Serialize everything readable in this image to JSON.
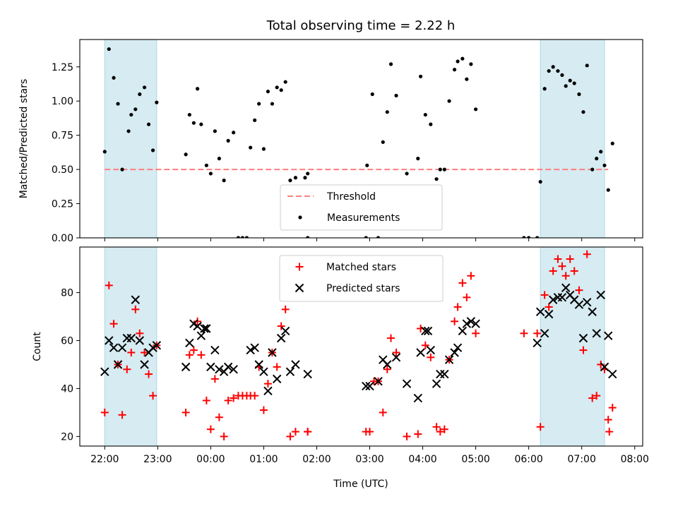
{
  "figure": {
    "title": "Total observing time = 2.22 h",
    "xlabel": "Time (UTC)"
  },
  "colors": {
    "shade": "#add8e6",
    "threshold": "#ff7f7f",
    "measurement": "#000000",
    "matched": "#ff0000",
    "predicted": "#000000"
  },
  "chart_data": [
    {
      "type": "scatter",
      "title": "Total observing time = 2.22 h",
      "xlabel": "",
      "ylabel": "Matched/Predicted stars",
      "x_unit": "hours after 22:00 UTC",
      "xlim": [
        -0.47,
        10.15
      ],
      "ylim": [
        0.0,
        1.45
      ],
      "yticks": [
        0.0,
        0.25,
        0.5,
        0.75,
        1.0,
        1.25
      ],
      "ytick_labels": [
        "0.00",
        "0.25",
        "0.50",
        "0.75",
        "1.00",
        "1.25"
      ],
      "shaded_intervals": [
        [
          0.0,
          0.98
        ],
        [
          8.22,
          9.43
        ]
      ],
      "threshold": {
        "label": "Threshold",
        "value": 0.5,
        "x": [
          0.0,
          9.5
        ]
      },
      "legend": {
        "position": "bottom-center",
        "entries": [
          "Threshold",
          "Measurements"
        ]
      },
      "series": [
        {
          "name": "Measurements",
          "points": [
            [
              0.0,
              0.63
            ],
            [
              0.08,
              1.38
            ],
            [
              0.17,
              1.17
            ],
            [
              0.25,
              0.98
            ],
            [
              0.33,
              0.5
            ],
            [
              0.45,
              0.78
            ],
            [
              0.5,
              0.9
            ],
            [
              0.58,
              0.94
            ],
            [
              0.66,
              1.05
            ],
            [
              0.75,
              1.1
            ],
            [
              0.83,
              0.83
            ],
            [
              0.91,
              0.64
            ],
            [
              0.98,
              0.99
            ],
            [
              1.53,
              0.61
            ],
            [
              1.6,
              0.9
            ],
            [
              1.68,
              0.84
            ],
            [
              1.75,
              1.09
            ],
            [
              1.82,
              0.83
            ],
            [
              1.92,
              0.53
            ],
            [
              2.0,
              0.47
            ],
            [
              2.08,
              0.78
            ],
            [
              2.16,
              0.58
            ],
            [
              2.25,
              0.42
            ],
            [
              2.33,
              0.71
            ],
            [
              2.43,
              0.77
            ],
            [
              2.52,
              0.0
            ],
            [
              2.6,
              0.0
            ],
            [
              2.68,
              0.0
            ],
            [
              2.75,
              0.66
            ],
            [
              2.83,
              0.86
            ],
            [
              2.91,
              0.98
            ],
            [
              3.0,
              0.65
            ],
            [
              3.08,
              1.07
            ],
            [
              3.16,
              0.98
            ],
            [
              3.25,
              1.1
            ],
            [
              3.33,
              1.08
            ],
            [
              3.41,
              1.14
            ],
            [
              3.5,
              0.42
            ],
            [
              3.6,
              0.44
            ],
            [
              3.78,
              0.44
            ],
            [
              3.83,
              0.47
            ],
            [
              3.83,
              0.0
            ],
            [
              4.93,
              0.0
            ],
            [
              4.95,
              0.53
            ],
            [
              5.05,
              1.05
            ],
            [
              5.16,
              0.0
            ],
            [
              5.25,
              0.7
            ],
            [
              5.33,
              0.92
            ],
            [
              5.4,
              1.27
            ],
            [
              5.5,
              1.04
            ],
            [
              5.7,
              0.47
            ],
            [
              5.91,
              0.58
            ],
            [
              5.96,
              1.18
            ],
            [
              6.05,
              0.9
            ],
            [
              6.15,
              0.83
            ],
            [
              6.26,
              0.43
            ],
            [
              6.33,
              0.5
            ],
            [
              6.41,
              0.5
            ],
            [
              6.5,
              1.0
            ],
            [
              6.6,
              1.23
            ],
            [
              6.66,
              1.29
            ],
            [
              6.75,
              1.31
            ],
            [
              6.83,
              1.16
            ],
            [
              6.91,
              1.27
            ],
            [
              7.0,
              0.94
            ],
            [
              7.91,
              0.0
            ],
            [
              8.0,
              0.0
            ],
            [
              8.16,
              0.0
            ],
            [
              8.22,
              0.41
            ],
            [
              8.3,
              1.09
            ],
            [
              8.38,
              1.22
            ],
            [
              8.46,
              1.25
            ],
            [
              8.55,
              1.22
            ],
            [
              8.63,
              1.19
            ],
            [
              8.7,
              1.11
            ],
            [
              8.78,
              1.15
            ],
            [
              8.86,
              1.13
            ],
            [
              8.95,
              1.05
            ],
            [
              9.03,
              0.92
            ],
            [
              9.1,
              1.26
            ],
            [
              9.2,
              0.5
            ],
            [
              9.28,
              0.58
            ],
            [
              9.36,
              0.63
            ],
            [
              9.43,
              0.53
            ],
            [
              9.5,
              0.35
            ],
            [
              9.58,
              0.69
            ]
          ]
        }
      ]
    },
    {
      "type": "scatter",
      "title": "",
      "xlabel": "Time (UTC)",
      "ylabel": "Count",
      "x_unit": "hours after 22:00 UTC",
      "xlim": [
        -0.47,
        10.15
      ],
      "ylim": [
        16,
        99
      ],
      "yticks": [
        20,
        40,
        60,
        80
      ],
      "ytick_labels": [
        "20",
        "40",
        "60",
        "80"
      ],
      "xticks": [
        0,
        1,
        2,
        3,
        4,
        5,
        6,
        7,
        8,
        9,
        10
      ],
      "xtick_labels": [
        "22:00",
        "23:00",
        "00:00",
        "01:00",
        "02:00",
        "03:00",
        "04:00",
        "05:00",
        "06:00",
        "07:00",
        "08:00"
      ],
      "shaded_intervals": [
        [
          0.0,
          0.98
        ],
        [
          8.22,
          9.43
        ]
      ],
      "legend": {
        "position": "top-center",
        "entries": [
          "Matched stars",
          "Predicted stars"
        ]
      },
      "series": [
        {
          "name": "Matched stars",
          "marker": "plus",
          "points": [
            [
              0.0,
              30
            ],
            [
              0.08,
              83
            ],
            [
              0.17,
              67
            ],
            [
              0.25,
              50
            ],
            [
              0.33,
              29
            ],
            [
              0.42,
              48
            ],
            [
              0.5,
              55
            ],
            [
              0.58,
              73
            ],
            [
              0.66,
              63
            ],
            [
              0.75,
              55
            ],
            [
              0.83,
              46
            ],
            [
              0.91,
              37
            ],
            [
              0.98,
              58
            ],
            [
              1.53,
              30
            ],
            [
              1.6,
              54
            ],
            [
              1.68,
              56
            ],
            [
              1.75,
              68
            ],
            [
              1.82,
              54
            ],
            [
              1.92,
              35
            ],
            [
              2.0,
              23
            ],
            [
              2.08,
              44
            ],
            [
              2.16,
              28
            ],
            [
              2.25,
              20
            ],
            [
              2.33,
              35
            ],
            [
              2.43,
              36
            ],
            [
              2.52,
              37
            ],
            [
              2.6,
              37
            ],
            [
              2.68,
              37
            ],
            [
              2.75,
              37
            ],
            [
              2.83,
              37
            ],
            [
              2.91,
              49
            ],
            [
              3.0,
              31
            ],
            [
              3.08,
              42
            ],
            [
              3.16,
              55
            ],
            [
              3.25,
              49
            ],
            [
              3.33,
              66
            ],
            [
              3.41,
              73
            ],
            [
              3.5,
              20
            ],
            [
              3.6,
              22
            ],
            [
              3.83,
              22
            ],
            [
              3.83,
              22
            ],
            [
              4.93,
              22
            ],
            [
              5.0,
              22
            ],
            [
              5.08,
              43
            ],
            [
              5.16,
              43
            ],
            [
              5.25,
              30
            ],
            [
              5.33,
              48
            ],
            [
              5.4,
              61
            ],
            [
              5.5,
              55
            ],
            [
              5.7,
              20
            ],
            [
              5.91,
              21
            ],
            [
              5.96,
              65
            ],
            [
              6.05,
              58
            ],
            [
              6.15,
              53
            ],
            [
              6.26,
              24
            ],
            [
              6.33,
              22
            ],
            [
              6.41,
              23
            ],
            [
              6.5,
              52
            ],
            [
              6.6,
              68
            ],
            [
              6.66,
              74
            ],
            [
              6.75,
              84
            ],
            [
              6.83,
              78
            ],
            [
              6.91,
              87
            ],
            [
              7.0,
              63
            ],
            [
              7.91,
              63
            ],
            [
              8.16,
              63
            ],
            [
              8.22,
              24
            ],
            [
              8.3,
              79
            ],
            [
              8.38,
              74
            ],
            [
              8.46,
              89
            ],
            [
              8.55,
              94
            ],
            [
              8.63,
              91
            ],
            [
              8.7,
              87
            ],
            [
              8.78,
              94
            ],
            [
              8.86,
              89
            ],
            [
              8.95,
              81
            ],
            [
              9.03,
              56
            ],
            [
              9.1,
              96
            ],
            [
              9.2,
              36
            ],
            [
              9.28,
              37
            ],
            [
              9.36,
              50
            ],
            [
              9.43,
              48
            ],
            [
              9.5,
              27
            ],
            [
              9.52,
              22
            ],
            [
              9.58,
              32
            ]
          ]
        },
        {
          "name": "Predicted stars",
          "marker": "x",
          "points": [
            [
              0.0,
              47
            ],
            [
              0.08,
              60
            ],
            [
              0.17,
              57
            ],
            [
              0.25,
              50
            ],
            [
              0.33,
              57
            ],
            [
              0.42,
              61
            ],
            [
              0.5,
              61
            ],
            [
              0.58,
              77
            ],
            [
              0.66,
              60
            ],
            [
              0.75,
              50
            ],
            [
              0.83,
              55
            ],
            [
              0.91,
              57
            ],
            [
              0.98,
              58
            ],
            [
              1.53,
              49
            ],
            [
              1.6,
              59
            ],
            [
              1.68,
              67
            ],
            [
              1.75,
              66
            ],
            [
              1.82,
              62
            ],
            [
              1.88,
              65
            ],
            [
              1.92,
              65
            ],
            [
              2.0,
              49
            ],
            [
              2.08,
              56
            ],
            [
              2.16,
              48
            ],
            [
              2.25,
              47
            ],
            [
              2.33,
              49
            ],
            [
              2.43,
              48
            ],
            [
              2.75,
              56
            ],
            [
              2.83,
              57
            ],
            [
              2.91,
              50
            ],
            [
              3.0,
              47
            ],
            [
              3.08,
              39
            ],
            [
              3.16,
              55
            ],
            [
              3.25,
              44
            ],
            [
              3.33,
              61
            ],
            [
              3.41,
              64
            ],
            [
              3.5,
              47
            ],
            [
              3.6,
              50
            ],
            [
              3.83,
              46
            ],
            [
              4.93,
              41
            ],
            [
              5.0,
              41
            ],
            [
              5.16,
              43
            ],
            [
              5.25,
              52
            ],
            [
              5.33,
              50
            ],
            [
              5.5,
              53
            ],
            [
              5.7,
              42
            ],
            [
              5.91,
              36
            ],
            [
              5.96,
              55
            ],
            [
              6.05,
              64
            ],
            [
              6.1,
              64
            ],
            [
              6.15,
              56
            ],
            [
              6.26,
              42
            ],
            [
              6.33,
              46
            ],
            [
              6.41,
              46
            ],
            [
              6.5,
              52
            ],
            [
              6.6,
              55
            ],
            [
              6.66,
              57
            ],
            [
              6.75,
              64
            ],
            [
              6.83,
              67
            ],
            [
              6.91,
              68
            ],
            [
              7.0,
              67
            ],
            [
              8.16,
              59
            ],
            [
              8.22,
              72
            ],
            [
              8.3,
              63
            ],
            [
              8.38,
              71
            ],
            [
              8.46,
              77
            ],
            [
              8.55,
              78
            ],
            [
              8.63,
              78
            ],
            [
              8.7,
              82
            ],
            [
              8.78,
              79
            ],
            [
              8.86,
              77
            ],
            [
              8.95,
              75
            ],
            [
              9.03,
              61
            ],
            [
              9.1,
              76
            ],
            [
              9.2,
              72
            ],
            [
              9.28,
              63
            ],
            [
              9.36,
              79
            ],
            [
              9.43,
              49
            ],
            [
              9.5,
              62
            ],
            [
              9.58,
              46
            ]
          ]
        }
      ]
    }
  ]
}
